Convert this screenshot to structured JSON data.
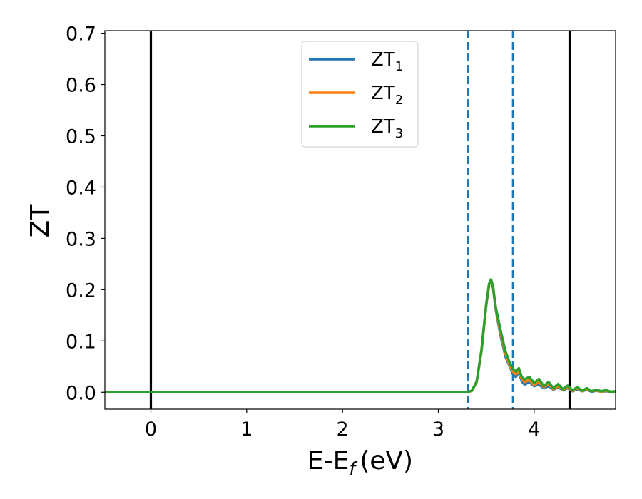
{
  "chart_data": {
    "type": "line",
    "title": "",
    "xlabel": "E-E",
    "xlabel_sub": "f",
    "xlabel_unit": "(eV)",
    "ylabel": "ZT",
    "xlim": [
      -0.48,
      4.85
    ],
    "ylim": [
      -0.033,
      0.705
    ],
    "xticks": [
      0,
      1,
      2,
      3,
      4
    ],
    "yticks": [
      0.0,
      0.1,
      0.2,
      0.3,
      0.4,
      0.5,
      0.6,
      0.7
    ],
    "xtick_labels": [
      "0",
      "1",
      "2",
      "3",
      "4"
    ],
    "ytick_labels": [
      "0.0",
      "0.1",
      "0.2",
      "0.3",
      "0.4",
      "0.5",
      "0.6",
      "0.7"
    ],
    "grid": false,
    "legend_position": "top-center",
    "vertical_lines": [
      {
        "x": 0.0,
        "style": "solid",
        "color": "#000000"
      },
      {
        "x": 4.37,
        "style": "solid",
        "color": "#000000"
      },
      {
        "x": 3.31,
        "style": "dashed",
        "color": "#1f77b4"
      },
      {
        "x": 3.78,
        "style": "dashed",
        "color": "#1f77b4"
      }
    ],
    "series": [
      {
        "name": "ZT",
        "sub": "1",
        "color": "#1f77b4",
        "x": [
          -0.48,
          3.3,
          3.35,
          3.4,
          3.45,
          3.5,
          3.53,
          3.55,
          3.57,
          3.6,
          3.65,
          3.7,
          3.75,
          3.78,
          3.81,
          3.84,
          3.87,
          3.9,
          3.95,
          4.0,
          4.05,
          4.1,
          4.15,
          4.2,
          4.25,
          4.3,
          4.35,
          4.4,
          4.45,
          4.5,
          4.55,
          4.6,
          4.65,
          4.7,
          4.75,
          4.8,
          4.85
        ],
        "y": [
          0.0,
          0.0,
          0.003,
          0.02,
          0.08,
          0.17,
          0.21,
          0.218,
          0.205,
          0.16,
          0.11,
          0.07,
          0.048,
          0.035,
          0.03,
          0.04,
          0.022,
          0.015,
          0.02,
          0.012,
          0.015,
          0.008,
          0.012,
          0.005,
          0.01,
          0.004,
          0.008,
          0.002,
          0.006,
          0.002,
          0.005,
          0.001,
          0.003,
          0.001,
          0.002,
          0.001,
          0.001
        ]
      },
      {
        "name": "ZT",
        "sub": "2",
        "color": "#ff7f0e",
        "x": [
          -0.48,
          3.3,
          3.35,
          3.4,
          3.45,
          3.5,
          3.53,
          3.55,
          3.57,
          3.6,
          3.65,
          3.7,
          3.75,
          3.78,
          3.81,
          3.84,
          3.87,
          3.9,
          3.95,
          4.0,
          4.05,
          4.1,
          4.15,
          4.2,
          4.25,
          4.3,
          4.35,
          4.4,
          4.45,
          4.5,
          4.55,
          4.6,
          4.65,
          4.7,
          4.75,
          4.8,
          4.85
        ],
        "y": [
          0.0,
          0.0,
          0.003,
          0.02,
          0.08,
          0.17,
          0.21,
          0.219,
          0.206,
          0.162,
          0.115,
          0.075,
          0.05,
          0.04,
          0.035,
          0.042,
          0.026,
          0.02,
          0.024,
          0.014,
          0.02,
          0.01,
          0.016,
          0.006,
          0.012,
          0.005,
          0.01,
          0.003,
          0.008,
          0.002,
          0.006,
          0.002,
          0.004,
          0.001,
          0.003,
          0.001,
          0.001
        ]
      },
      {
        "name": "ZT",
        "sub": "3",
        "color": "#2ca02c",
        "x": [
          -0.48,
          3.3,
          3.35,
          3.4,
          3.45,
          3.5,
          3.53,
          3.55,
          3.57,
          3.6,
          3.65,
          3.7,
          3.75,
          3.78,
          3.81,
          3.84,
          3.87,
          3.9,
          3.95,
          4.0,
          4.05,
          4.1,
          4.15,
          4.2,
          4.25,
          4.3,
          4.35,
          4.4,
          4.45,
          4.5,
          4.55,
          4.6,
          4.65,
          4.7,
          4.75,
          4.8,
          4.85
        ],
        "y": [
          0.0,
          0.0,
          0.003,
          0.021,
          0.082,
          0.172,
          0.212,
          0.22,
          0.207,
          0.165,
          0.12,
          0.08,
          0.055,
          0.045,
          0.04,
          0.047,
          0.03,
          0.025,
          0.03,
          0.018,
          0.026,
          0.012,
          0.02,
          0.008,
          0.016,
          0.006,
          0.013,
          0.004,
          0.01,
          0.003,
          0.008,
          0.002,
          0.005,
          0.002,
          0.004,
          0.001,
          0.002
        ]
      }
    ]
  }
}
